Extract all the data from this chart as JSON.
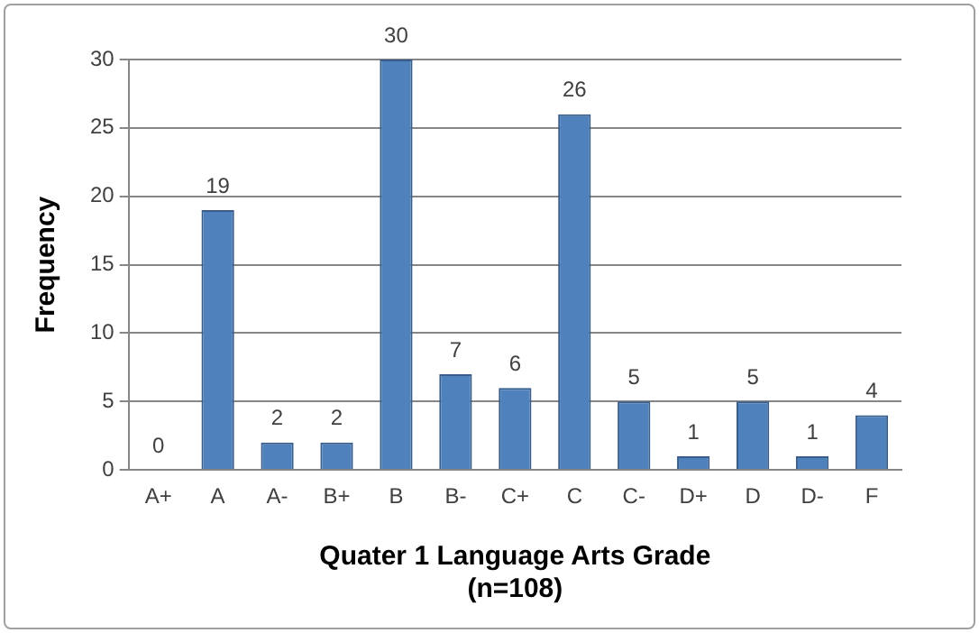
{
  "chart_data": {
    "type": "bar",
    "xlabel": "Quater 1 Language Arts Grade\n(n=108)",
    "ylabel": "Frequency",
    "categories": [
      "A+",
      "A",
      "A-",
      "B+",
      "B",
      "B-",
      "C+",
      "C",
      "C-",
      "D+",
      "D",
      "D-",
      "F"
    ],
    "values": [
      0,
      19,
      2,
      2,
      30,
      7,
      6,
      26,
      5,
      1,
      5,
      1,
      4
    ],
    "color": "#4f81bd",
    "ylim": [
      0,
      30
    ],
    "yticks": [
      0,
      5,
      10,
      15,
      20,
      25,
      30
    ],
    "grid": "y",
    "legend": false,
    "data_labels": true
  }
}
